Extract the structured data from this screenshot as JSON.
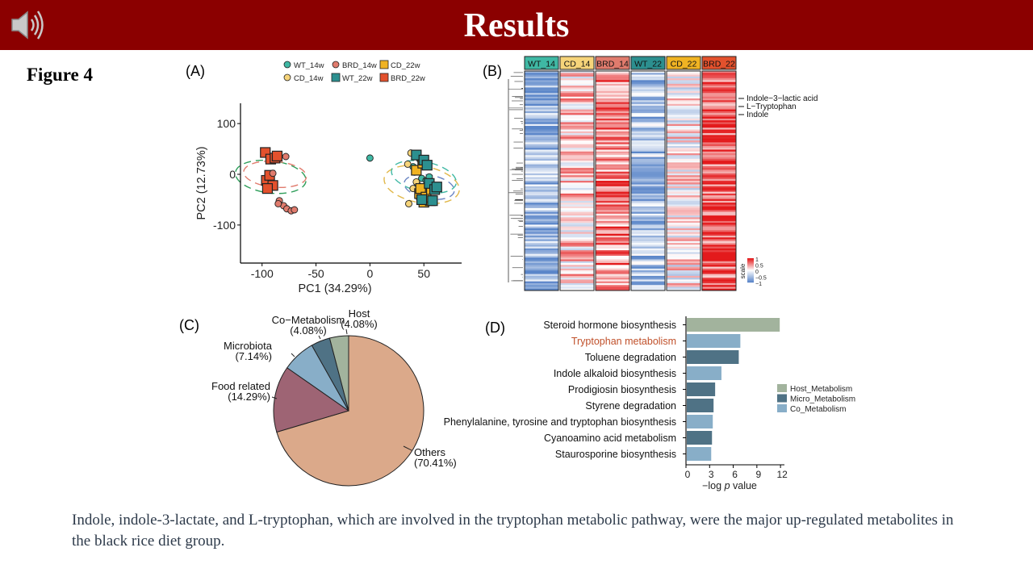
{
  "slide": {
    "title": "Results",
    "figure_label": "Figure 4",
    "icon": "speaker-icon",
    "caption": "Indole, indole-3-lactate, and L-tryptophan, which are involved in the tryptophan metabolic pathway, were the major up-regulated metabolites in the black rice diet group.",
    "colors": {
      "banner": "#8b0000",
      "title": "#ffffff",
      "caption": "#2d3a4a",
      "highlight": "#c0502a"
    }
  },
  "panels": {
    "a": "(A)",
    "b": "(B)",
    "c": "(C)",
    "d": "(D)"
  },
  "chart_data": [
    {
      "type": "scatter",
      "panel": "(A)",
      "xlabel": "PC1 (34.29%)",
      "ylabel": "PC2 (12.73%)",
      "xlim": [
        -120,
        85
      ],
      "ylim": [
        -175,
        140
      ],
      "xticks": [
        -100,
        -50,
        0,
        50
      ],
      "yticks": [
        100,
        0,
        -100
      ],
      "legend": [
        {
          "name": "WT_14w",
          "color": "#3fb8a4",
          "shape": "circle"
        },
        {
          "name": "BRD_14w",
          "color": "#e07b6d",
          "shape": "circle"
        },
        {
          "name": "CD_22w",
          "color": "#f0b323",
          "shape": "square"
        },
        {
          "name": "CD_14w",
          "color": "#f6d47a",
          "shape": "circle"
        },
        {
          "name": "WT_22w",
          "color": "#2c8f8f",
          "shape": "square"
        },
        {
          "name": "BRD_22w",
          "color": "#e3512d",
          "shape": "square"
        }
      ],
      "series": [
        {
          "name": "BRD_22w",
          "points": [
            [
              -97,
              43
            ],
            [
              -92,
              30
            ],
            [
              -88,
              32
            ],
            [
              -96,
              -12
            ],
            [
              -90,
              -22
            ],
            [
              -95,
              -28
            ],
            [
              -86,
              36
            ],
            [
              -93,
              -2
            ]
          ]
        },
        {
          "name": "BRD_14w",
          "points": [
            [
              -78,
              35
            ],
            [
              -84,
              -52
            ],
            [
              -80,
              -62
            ],
            [
              -77,
              -68
            ],
            [
              -73,
              -72
            ],
            [
              -70,
              -70
            ],
            [
              -85,
              -58
            ],
            [
              -90,
              2
            ]
          ]
        },
        {
          "name": "WT_14w",
          "points": [
            [
              0,
              32
            ],
            [
              42,
              40
            ],
            [
              46,
              30
            ],
            [
              48,
              -8
            ],
            [
              52,
              -12
            ],
            [
              44,
              -20
            ],
            [
              55,
              -5
            ],
            [
              40,
              15
            ]
          ]
        },
        {
          "name": "CD_14w",
          "points": [
            [
              38,
              42
            ],
            [
              36,
              -58
            ],
            [
              43,
              -15
            ],
            [
              50,
              -35
            ],
            [
              46,
              -48
            ],
            [
              40,
              -28
            ],
            [
              54,
              -22
            ],
            [
              35,
              20
            ]
          ]
        },
        {
          "name": "CD_22w",
          "points": [
            [
              46,
              -38
            ],
            [
              50,
              -55
            ],
            [
              56,
              -52
            ],
            [
              47,
              -28
            ],
            [
              52,
              -45
            ],
            [
              43,
              8
            ],
            [
              57,
              -30
            ],
            [
              49,
              22
            ]
          ]
        },
        {
          "name": "WT_22w",
          "points": [
            [
              43,
              38
            ],
            [
              50,
              28
            ],
            [
              55,
              -18
            ],
            [
              60,
              -30
            ],
            [
              48,
              -50
            ],
            [
              58,
              -52
            ],
            [
              53,
              18
            ],
            [
              62,
              -25
            ]
          ]
        }
      ]
    },
    {
      "type": "heatmap",
      "panel": "(B)",
      "columns": [
        {
          "name": "WT_14",
          "color": "#3fb8a4",
          "mean": -0.55
        },
        {
          "name": "CD_14",
          "color": "#f6d47a",
          "mean": 0.2
        },
        {
          "name": "BRD_14",
          "color": "#e07b6d",
          "mean": 0.55
        },
        {
          "name": "WT_22",
          "color": "#2c8f8f",
          "mean": -0.5
        },
        {
          "name": "CD_22",
          "color": "#f0b323",
          "mean": 0.05
        },
        {
          "name": "BRD_22",
          "color": "#e3512d",
          "mean": 0.75
        }
      ],
      "annotations": [
        "Indole−3−lactic acid",
        "L−Tryptophan",
        "Indole"
      ],
      "scale_label": "scale",
      "scale_ticks": [
        "1",
        "0.5",
        "0",
        "−0.5",
        "−1"
      ],
      "scale_colors": {
        "high": "#e31a1c",
        "mid": "#ffffff",
        "low": "#5b86c9"
      }
    },
    {
      "type": "pie",
      "panel": "(C)",
      "slices": [
        {
          "label": "Others",
          "value": 70.41,
          "display": "(70.41%)",
          "color": "#dba98a"
        },
        {
          "label": "Food related",
          "value": 14.29,
          "display": "(14.29%)",
          "color": "#9e6474"
        },
        {
          "label": "Microbiota",
          "value": 7.14,
          "display": "(7.14%)",
          "color": "#88aec8"
        },
        {
          "label": "Co−Metabolism",
          "value": 4.08,
          "display": "(4.08%)",
          "color": "#4f7285"
        },
        {
          "label": "Host",
          "value": 4.08,
          "display": "(4.08%)",
          "color": "#a2b39d"
        }
      ]
    },
    {
      "type": "bar",
      "panel": "(D)",
      "orientation": "horizontal",
      "categories": [
        "Steroid hormone biosynthesis",
        "Tryptophan metabolism",
        "Toluene degradation",
        "Indole alkaloid biosynthesis",
        "Prodigiosin biosynthesis",
        "Styrene degradation",
        "Phenylalanine, tyrosine and tryptophan biosynthesis",
        "Cyanoamino acid metabolism",
        "Staurosporine biosynthesis"
      ],
      "values": [
        11.8,
        6.8,
        6.6,
        4.4,
        3.6,
        3.4,
        3.3,
        3.2,
        3.1
      ],
      "groups": [
        "Host_Metabolism",
        "Co_Metabolism",
        "Micro_Metabolism",
        "Co_Metabolism",
        "Micro_Metabolism",
        "Micro_Metabolism",
        "Co_Metabolism",
        "Micro_Metabolism",
        "Co_Metabolism"
      ],
      "highlighted": "Tryptophan metabolism",
      "xlabel_prefix": "−log ",
      "xlabel_italic": "p",
      "xlabel_suffix": " value",
      "xlim": [
        0,
        12.5
      ],
      "xticks": [
        "0",
        "3",
        "6",
        "9",
        "12"
      ],
      "legend": [
        {
          "name": "Host_Metabolism",
          "color": "#a2b39d"
        },
        {
          "name": "Micro_Metabolism",
          "color": "#4f7285"
        },
        {
          "name": "Co_Metabolism",
          "color": "#88aec8"
        }
      ]
    }
  ]
}
